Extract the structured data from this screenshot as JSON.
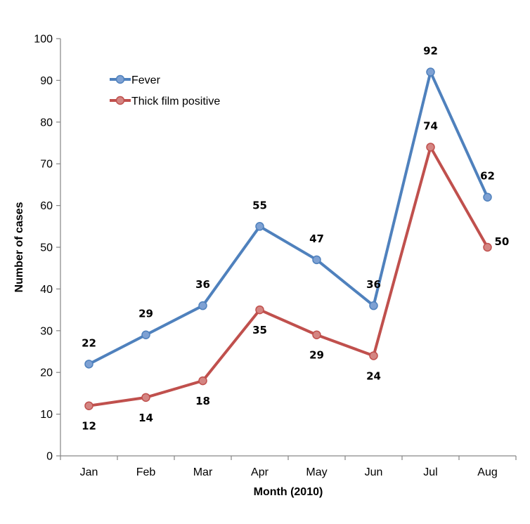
{
  "chart_data": {
    "type": "line",
    "title": "",
    "xlabel": "Month (2010)",
    "ylabel": "Number of cases",
    "categories": [
      "Jan",
      "Feb",
      "Mar",
      "Apr",
      "May",
      "Jun",
      "Jul",
      "Aug"
    ],
    "ylim": [
      0,
      100
    ],
    "yticks": [
      0,
      10,
      20,
      30,
      40,
      50,
      60,
      70,
      80,
      90,
      100
    ],
    "grid": false,
    "legend_position": "top-left",
    "series": [
      {
        "name": "Fever",
        "color": "#4f81bd",
        "marker_color": "#7ea1d3",
        "values": [
          22,
          29,
          36,
          55,
          47,
          36,
          92,
          62
        ],
        "label_placement": [
          "above",
          "above",
          "above",
          "above",
          "above",
          "above",
          "above",
          "above"
        ]
      },
      {
        "name": "Thick film positive",
        "color": "#c0504d",
        "marker_color": "#d48582",
        "values": [
          12,
          14,
          18,
          35,
          29,
          24,
          74,
          50
        ],
        "label_placement": [
          "below",
          "below",
          "below",
          "below",
          "below",
          "below",
          "above",
          "right"
        ]
      }
    ]
  }
}
